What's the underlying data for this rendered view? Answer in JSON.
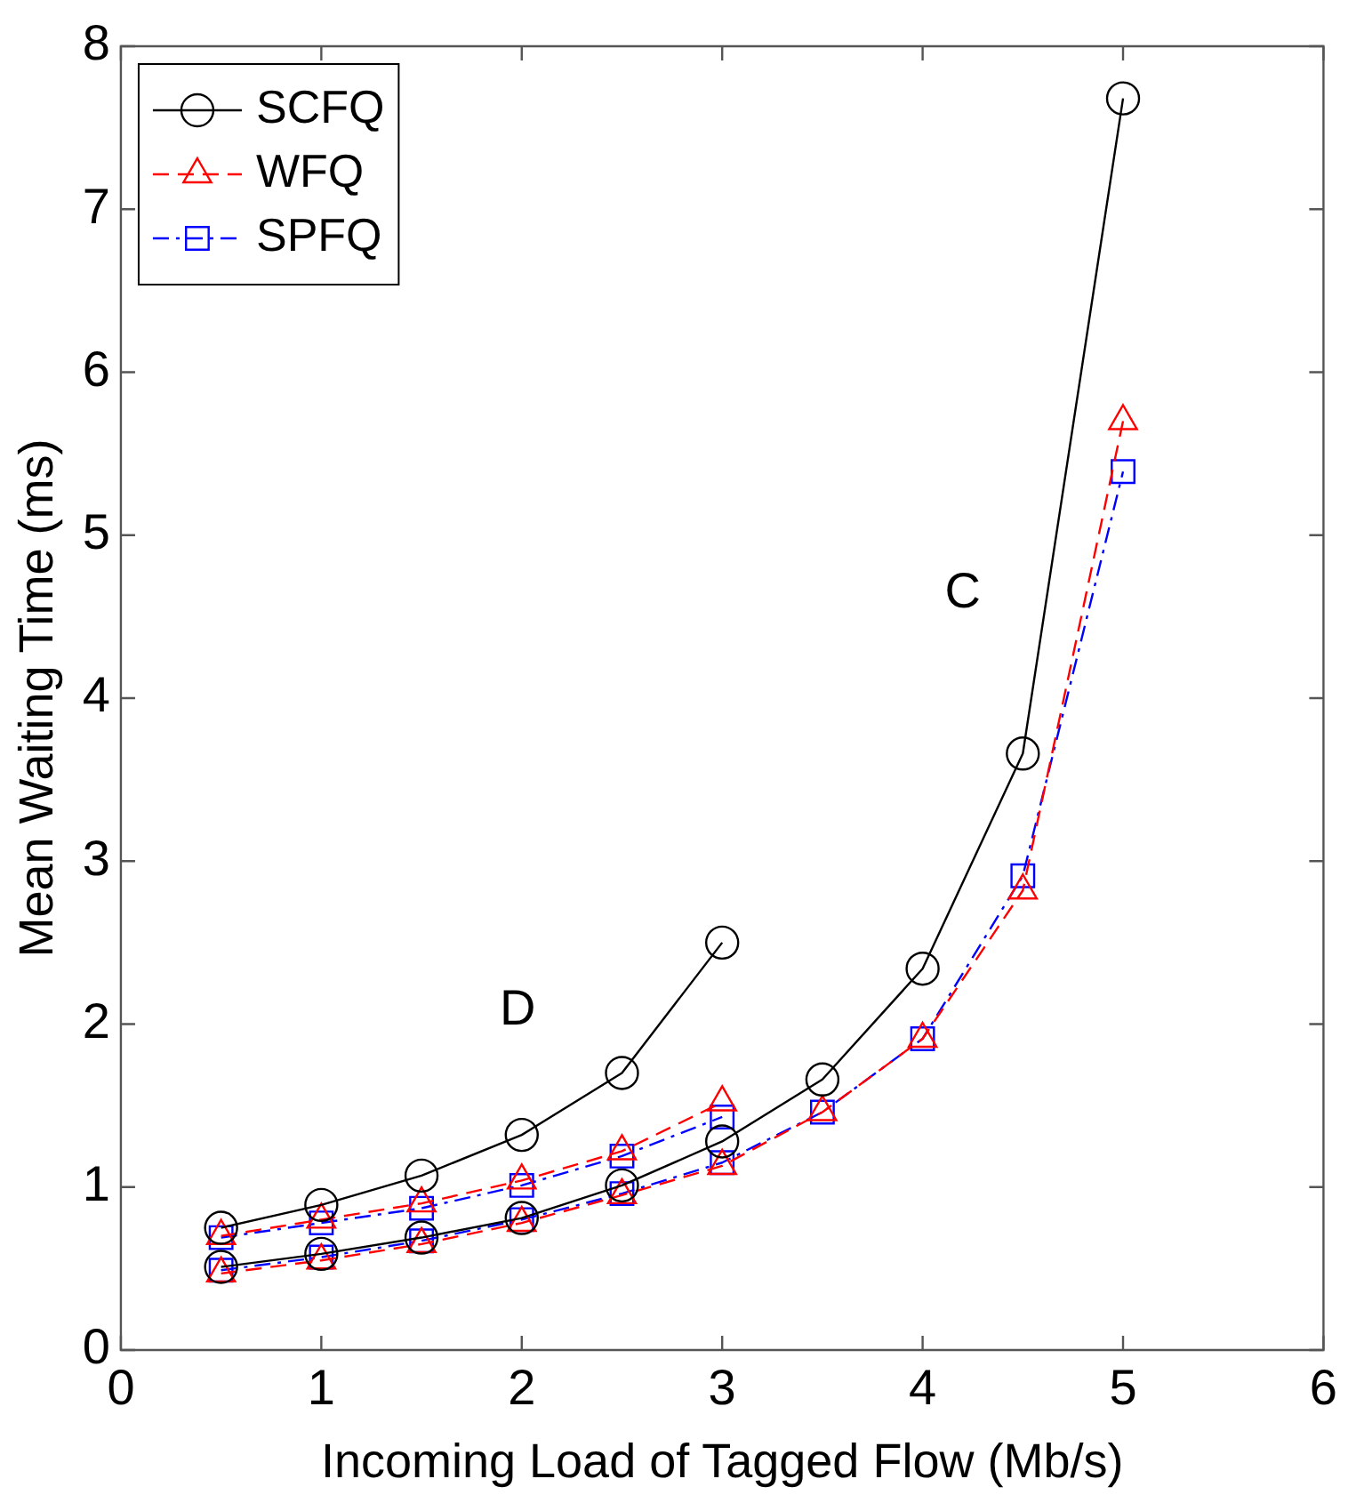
{
  "chart_data": {
    "type": "line",
    "xlabel": "Incoming Load of Tagged Flow (Mb/s)",
    "ylabel": "Mean Waiting Time (ms)",
    "x": [
      0.5,
      1,
      1.5,
      2,
      2.5,
      3,
      3.5,
      4,
      4.5,
      5
    ],
    "xlim": [
      0,
      6
    ],
    "xticks": [
      0,
      1,
      2,
      3,
      4,
      5,
      6
    ],
    "ylim": [
      0,
      8
    ],
    "yticks": [
      0,
      1,
      2,
      3,
      4,
      5,
      6,
      7,
      8
    ],
    "grid": false,
    "legend": "top left",
    "annotations": [
      "C",
      "D"
    ],
    "series": [
      {
        "name": "SCFQ",
        "color": "#000000",
        "marker": "circle",
        "line_style": "solid",
        "values": [
          0.51,
          0.59,
          0.69,
          0.81,
          1.01,
          1.28,
          1.66,
          2.34,
          3.66,
          7.68
        ]
      },
      {
        "name": "WFQ",
        "color": "#ff0000",
        "marker": "triangle",
        "line_style": "dashed",
        "values": [
          0.47,
          0.55,
          0.65,
          0.78,
          0.95,
          1.13,
          1.46,
          1.91,
          2.82,
          5.7
        ]
      },
      {
        "name": "SPFQ",
        "color": "#0000ff",
        "marker": "square",
        "line_style": "dotted",
        "values": [
          0.49,
          0.57,
          0.67,
          0.8,
          0.96,
          1.15,
          1.46,
          1.91,
          2.91,
          5.39
        ]
      },
      {
        "color": "#000000",
        "marker": "circle",
        "line_style": "solid",
        "x": [
          0.5,
          1,
          1.5,
          2,
          2.5,
          3
        ],
        "values": [
          0.75,
          0.89,
          1.07,
          1.32,
          1.7,
          2.5
        ]
      },
      {
        "color": "#ff0000",
        "marker": "triangle",
        "line_style": "dashed",
        "x": [
          0.5,
          1,
          1.5,
          2,
          2.5,
          3
        ],
        "values": [
          0.7,
          0.8,
          0.9,
          1.04,
          1.22,
          1.52
        ]
      },
      {
        "color": "#0000ff",
        "marker": "square",
        "line_style": "dotted",
        "x": [
          0.5,
          1,
          1.5,
          2,
          2.5,
          3
        ],
        "values": [
          0.69,
          0.78,
          0.87,
          1.01,
          1.19,
          1.43
        ]
      }
    ]
  }
}
